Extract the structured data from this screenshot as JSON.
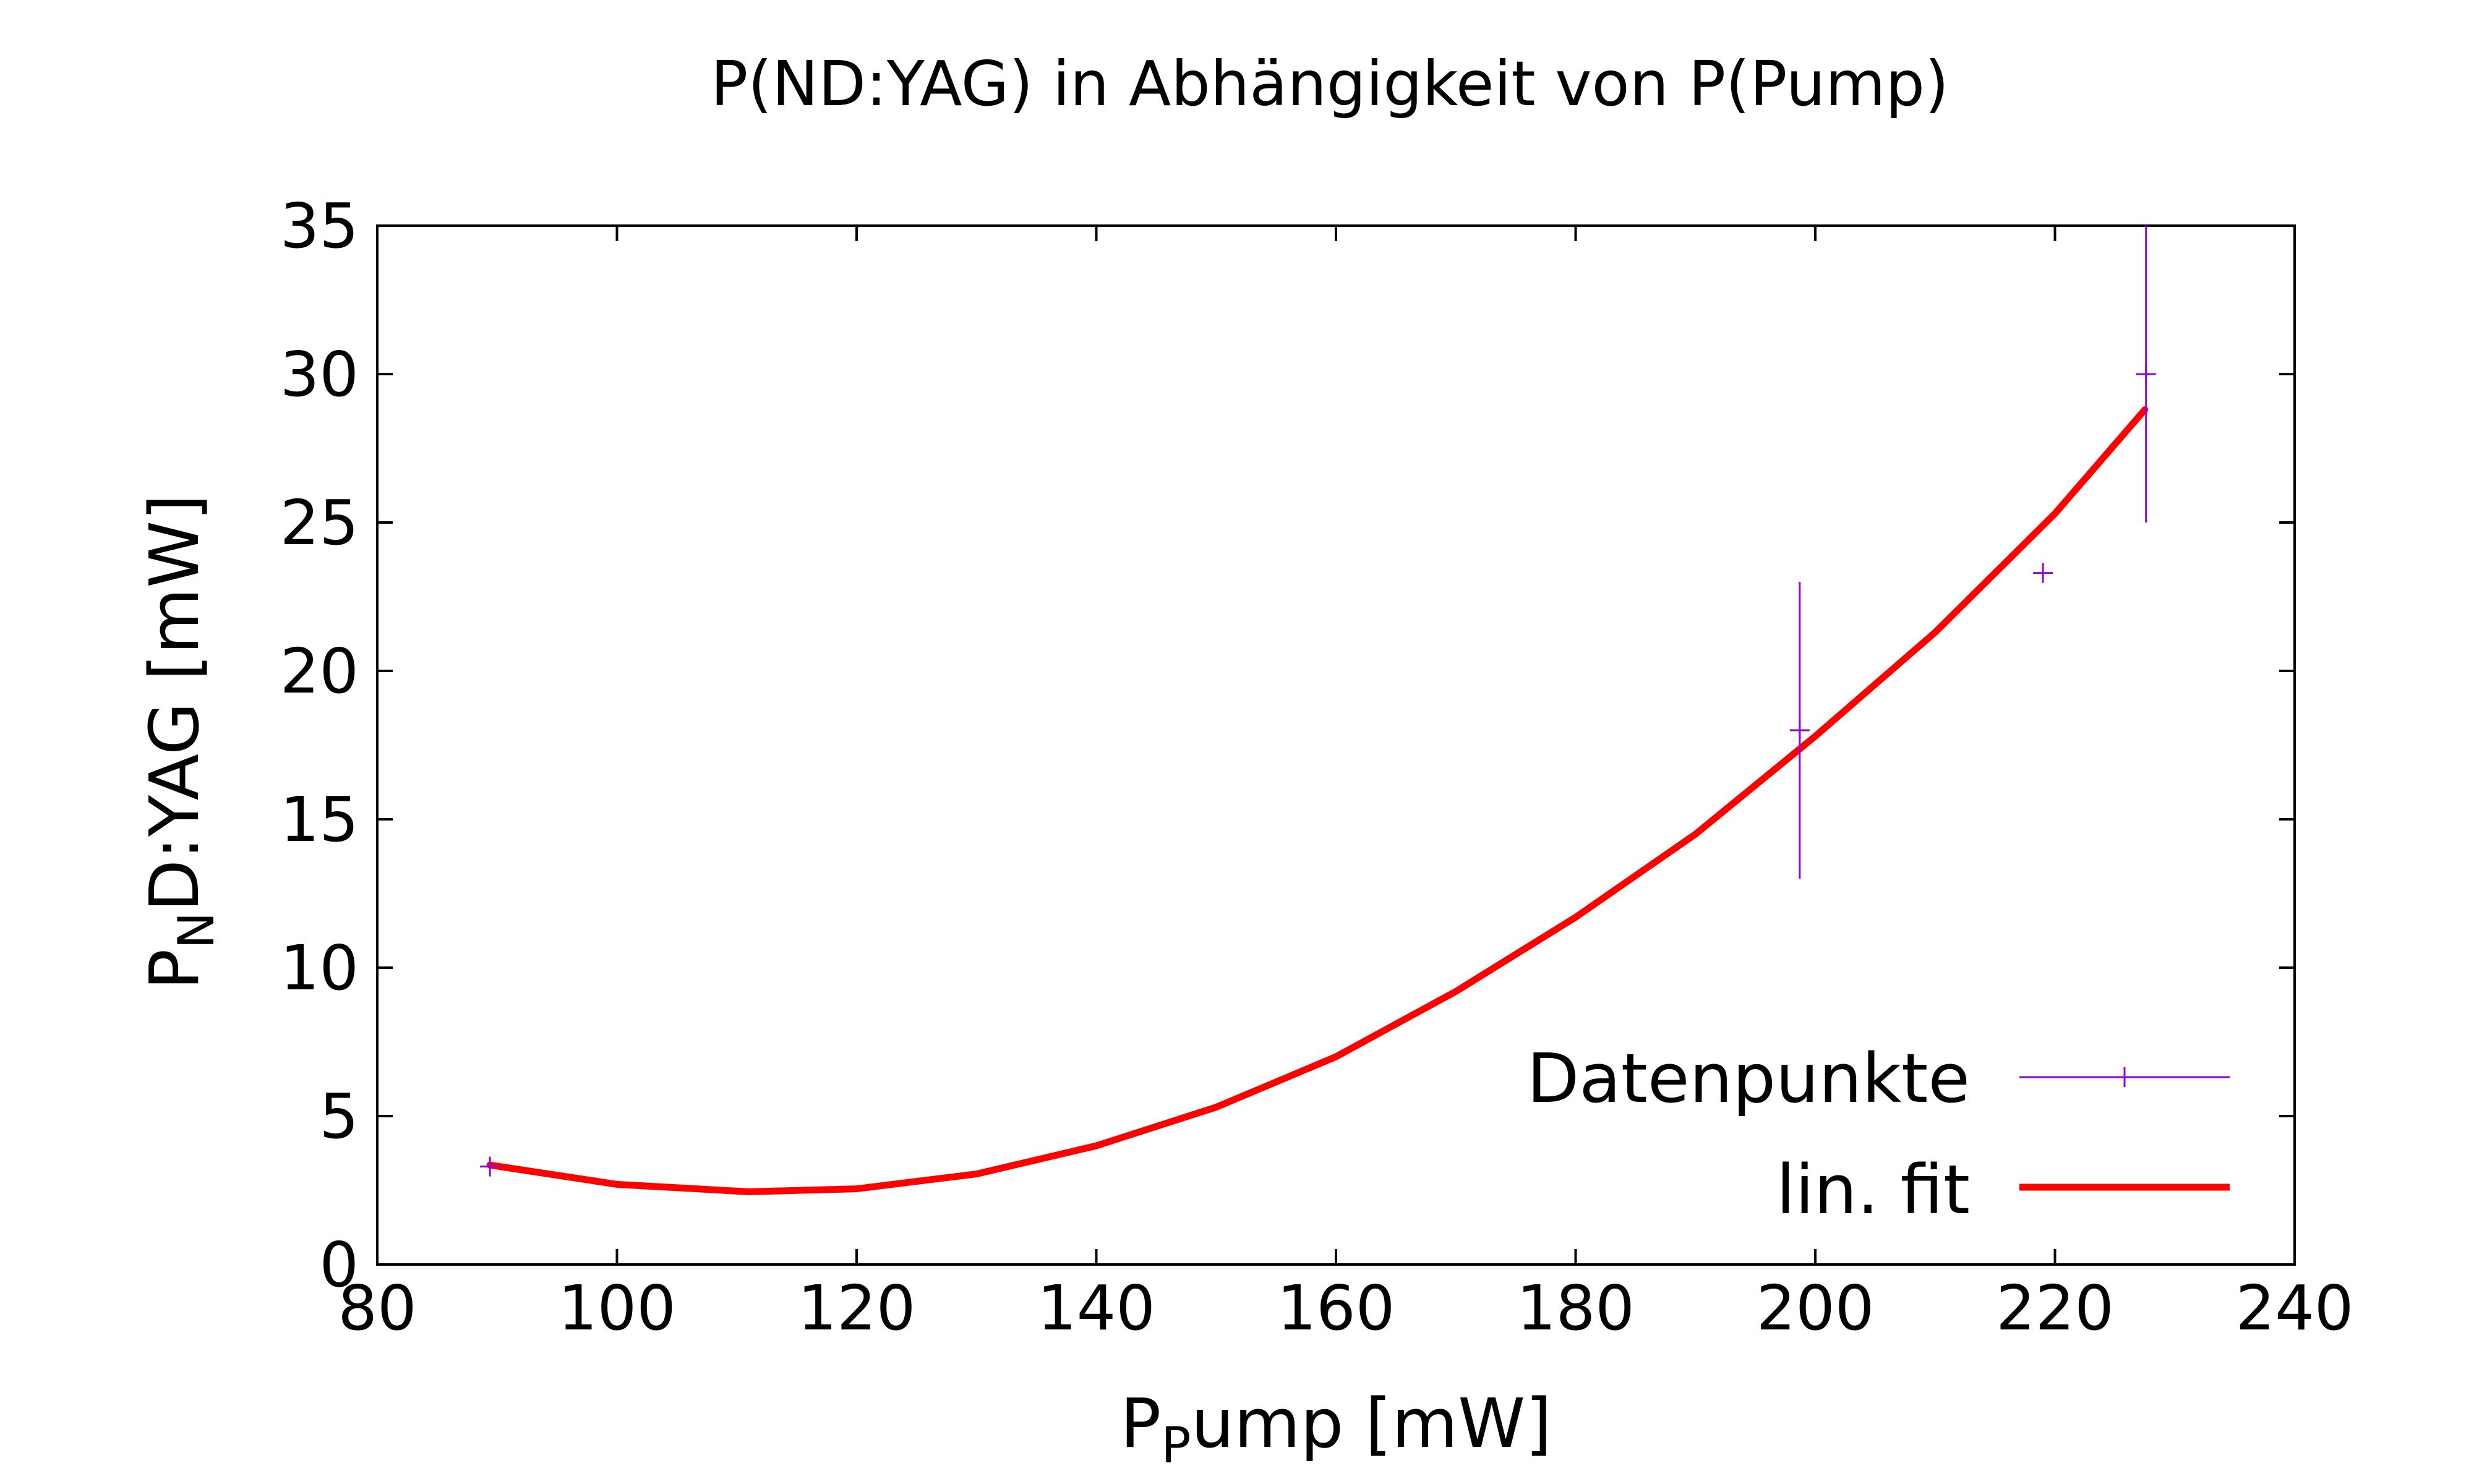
{
  "chart_data": {
    "type": "scatter",
    "title": "P(ND:YAG) in Abhängigkeit von P(Pump)",
    "xlabel": {
      "main": "P",
      "sub": "P",
      "rest": "ump [mW]"
    },
    "ylabel": {
      "main": "P",
      "sub": "N",
      "rest": "D:YAG [mW]"
    },
    "xlim": [
      80,
      240
    ],
    "ylim": [
      0,
      35
    ],
    "xticks": [
      "80",
      "100",
      "120",
      "140",
      "160",
      "180",
      "200",
      "220",
      "240"
    ],
    "yticks": [
      "0",
      "5",
      "10",
      "15",
      "20",
      "25",
      "30",
      "35"
    ],
    "grid": false,
    "legend_position": "bottom-right",
    "colors": {
      "points": "#9400d3",
      "fit": "#ff0000"
    },
    "series": [
      {
        "name": "Datenpunkte",
        "kind": "points-errorbars",
        "points": [
          {
            "x": 89.4,
            "y": 3.3,
            "yerr": 0
          },
          {
            "x": 198.7,
            "y": 18.0,
            "yerr": 5.0
          },
          {
            "x": 219.0,
            "y": 23.3,
            "yerr": 0
          },
          {
            "x": 227.6,
            "y": 30.0,
            "yerr": 5.0
          }
        ]
      },
      {
        "name": "lin. fit",
        "kind": "line",
        "points": [
          {
            "x": 89.4,
            "y": 3.35
          },
          {
            "x": 100,
            "y": 2.7
          },
          {
            "x": 111,
            "y": 2.45
          },
          {
            "x": 120,
            "y": 2.55
          },
          {
            "x": 130,
            "y": 3.05
          },
          {
            "x": 140,
            "y": 4.0
          },
          {
            "x": 150,
            "y": 5.3
          },
          {
            "x": 160,
            "y": 7.0
          },
          {
            "x": 170,
            "y": 9.2
          },
          {
            "x": 180,
            "y": 11.7
          },
          {
            "x": 190,
            "y": 14.5
          },
          {
            "x": 200,
            "y": 17.8
          },
          {
            "x": 210,
            "y": 21.3
          },
          {
            "x": 220,
            "y": 25.3
          },
          {
            "x": 227.5,
            "y": 28.8
          }
        ]
      }
    ]
  }
}
